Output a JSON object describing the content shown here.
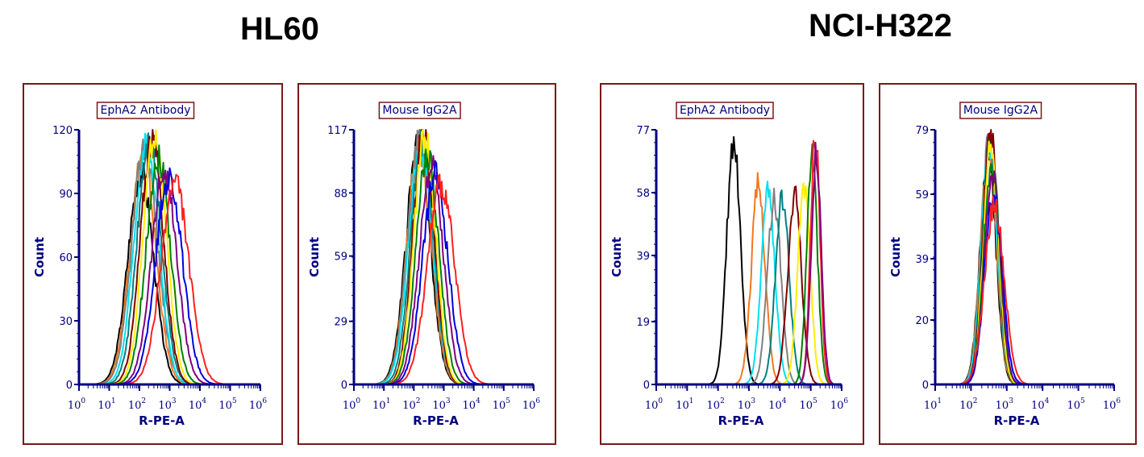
{
  "groups": [
    {
      "title": "HL60"
    },
    {
      "title": "NCI-H322"
    }
  ],
  "colors": {
    "frame": "#7a1717",
    "axis": "#000080",
    "text": "#000080"
  },
  "chart_data": [
    {
      "type": "line",
      "group": "HL60",
      "title": "EphA2 Antibody",
      "xlabel": "R-PE-A",
      "ylabel": "Count",
      "xscale": "log",
      "xlim": [
        1,
        1000000
      ],
      "ylim": [
        0,
        120
      ],
      "xticks": [
        {
          "exp": "0"
        },
        {
          "exp": "1"
        },
        {
          "exp": "2"
        },
        {
          "exp": "3"
        },
        {
          "exp": "4"
        },
        {
          "exp": "5"
        },
        {
          "exp": "6"
        }
      ],
      "yticks": [
        {
          "v": 0,
          "label": "0"
        },
        {
          "v": 30,
          "label": "30"
        },
        {
          "v": 60,
          "label": "60"
        },
        {
          "v": 90,
          "label": "90"
        },
        {
          "v": 120,
          "label": "120"
        }
      ],
      "series": [
        {
          "color": "#000000",
          "peak_x": 110,
          "peak_y": 100,
          "width": 0.42
        },
        {
          "color": "#f07820",
          "peak_x": 130,
          "peak_y": 108,
          "width": 0.42
        },
        {
          "color": "#808080",
          "peak_x": 150,
          "peak_y": 112,
          "width": 0.42
        },
        {
          "color": "#00e0f0",
          "peak_x": 170,
          "peak_y": 115,
          "width": 0.4
        },
        {
          "color": "#008080",
          "peak_x": 210,
          "peak_y": 113,
          "width": 0.4
        },
        {
          "color": "#800000",
          "peak_x": 260,
          "peak_y": 116,
          "width": 0.38
        },
        {
          "color": "#ffee00",
          "peak_x": 320,
          "peak_y": 118,
          "width": 0.38
        },
        {
          "color": "#008000",
          "peak_x": 420,
          "peak_y": 107,
          "width": 0.4
        },
        {
          "color": "#800080",
          "peak_x": 650,
          "peak_y": 100,
          "width": 0.42
        },
        {
          "color": "#0000e0",
          "peak_x": 950,
          "peak_y": 98,
          "width": 0.44
        },
        {
          "color": "#ff2020",
          "peak_x": 1500,
          "peak_y": 95,
          "width": 0.46
        }
      ]
    },
    {
      "type": "line",
      "group": "HL60",
      "title": "Mouse IgG2A",
      "xlabel": "R-PE-A",
      "ylabel": "Count",
      "xscale": "log",
      "xlim": [
        1,
        1000000
      ],
      "ylim": [
        0,
        117
      ],
      "xticks": [
        {
          "exp": "0"
        },
        {
          "exp": "1"
        },
        {
          "exp": "2"
        },
        {
          "exp": "3"
        },
        {
          "exp": "4"
        },
        {
          "exp": "5"
        },
        {
          "exp": "6"
        }
      ],
      "yticks": [
        {
          "v": 0,
          "label": "0"
        },
        {
          "v": 29,
          "label": "29"
        },
        {
          "v": 59,
          "label": "59"
        },
        {
          "v": 88,
          "label": "88"
        },
        {
          "v": 117,
          "label": "117"
        }
      ],
      "series": [
        {
          "color": "#000000",
          "peak_x": 140,
          "peak_y": 110,
          "width": 0.4
        },
        {
          "color": "#f07820",
          "peak_x": 150,
          "peak_y": 108,
          "width": 0.4
        },
        {
          "color": "#808080",
          "peak_x": 160,
          "peak_y": 112,
          "width": 0.4
        },
        {
          "color": "#00e0f0",
          "peak_x": 170,
          "peak_y": 110,
          "width": 0.4
        },
        {
          "color": "#008080",
          "peak_x": 190,
          "peak_y": 112,
          "width": 0.38
        },
        {
          "color": "#800000",
          "peak_x": 210,
          "peak_y": 116,
          "width": 0.36
        },
        {
          "color": "#ffee00",
          "peak_x": 230,
          "peak_y": 114,
          "width": 0.36
        },
        {
          "color": "#008000",
          "peak_x": 280,
          "peak_y": 105,
          "width": 0.38
        },
        {
          "color": "#800080",
          "peak_x": 380,
          "peak_y": 100,
          "width": 0.4
        },
        {
          "color": "#0000e0",
          "peak_x": 520,
          "peak_y": 96,
          "width": 0.42
        },
        {
          "color": "#ff2020",
          "peak_x": 800,
          "peak_y": 92,
          "width": 0.45
        }
      ]
    },
    {
      "type": "line",
      "group": "NCI-H322",
      "title": "EphA2 Antibody",
      "xlabel": "R-PE-A",
      "ylabel": "Count",
      "xscale": "log",
      "xlim": [
        1,
        1000000
      ],
      "ylim": [
        0,
        77
      ],
      "xticks": [
        {
          "exp": "0"
        },
        {
          "exp": "1"
        },
        {
          "exp": "2"
        },
        {
          "exp": "3"
        },
        {
          "exp": "4"
        },
        {
          "exp": "5"
        },
        {
          "exp": "6"
        }
      ],
      "yticks": [
        {
          "v": 0,
          "label": "0"
        },
        {
          "v": 19,
          "label": "19"
        },
        {
          "v": 39,
          "label": "39"
        },
        {
          "v": 58,
          "label": "58"
        },
        {
          "v": 77,
          "label": "77"
        }
      ],
      "series": [
        {
          "color": "#000000",
          "peak_x": 320,
          "peak_y": 74,
          "width": 0.22
        },
        {
          "color": "#f07820",
          "peak_x": 2000,
          "peak_y": 60,
          "width": 0.22
        },
        {
          "color": "#00e0f0",
          "peak_x": 4200,
          "peak_y": 58,
          "width": 0.22
        },
        {
          "color": "#808080",
          "peak_x": 6500,
          "peak_y": 56,
          "width": 0.22
        },
        {
          "color": "#008080",
          "peak_x": 12000,
          "peak_y": 56,
          "width": 0.22
        },
        {
          "color": "#800000",
          "peak_x": 30000,
          "peak_y": 57,
          "width": 0.22
        },
        {
          "color": "#ffee00",
          "peak_x": 60000,
          "peak_y": 60,
          "width": 0.2
        },
        {
          "color": "#008000",
          "peak_x": 110000,
          "peak_y": 70,
          "width": 0.17
        },
        {
          "color": "#ff2020",
          "peak_x": 140000,
          "peak_y": 76,
          "width": 0.15
        },
        {
          "color": "#800080",
          "peak_x": 150000,
          "peak_y": 70,
          "width": 0.16
        }
      ]
    },
    {
      "type": "line",
      "group": "NCI-H322",
      "title": "Mouse IgG2A",
      "xlabel": "R-PE-A",
      "ylabel": "Count",
      "xscale": "log",
      "xlim": [
        10,
        1000000
      ],
      "ylim": [
        0,
        79
      ],
      "xticks": [
        {
          "exp": "1"
        },
        {
          "exp": "2"
        },
        {
          "exp": "3"
        },
        {
          "exp": "4"
        },
        {
          "exp": "5"
        },
        {
          "exp": "6"
        }
      ],
      "yticks": [
        {
          "v": 0,
          "label": "0"
        },
        {
          "v": 20,
          "label": "20"
        },
        {
          "v": 39,
          "label": "39"
        },
        {
          "v": 59,
          "label": "59"
        },
        {
          "v": 79,
          "label": "79"
        }
      ],
      "series": [
        {
          "color": "#000000",
          "peak_x": 300,
          "peak_y": 72,
          "width": 0.22
        },
        {
          "color": "#f07820",
          "peak_x": 310,
          "peak_y": 74,
          "width": 0.22
        },
        {
          "color": "#808080",
          "peak_x": 320,
          "peak_y": 76,
          "width": 0.22
        },
        {
          "color": "#00e0f0",
          "peak_x": 330,
          "peak_y": 73,
          "width": 0.22
        },
        {
          "color": "#008080",
          "peak_x": 340,
          "peak_y": 77,
          "width": 0.21
        },
        {
          "color": "#800000",
          "peak_x": 350,
          "peak_y": 79,
          "width": 0.21
        },
        {
          "color": "#ffee00",
          "peak_x": 360,
          "peak_y": 75,
          "width": 0.21
        },
        {
          "color": "#008000",
          "peak_x": 380,
          "peak_y": 70,
          "width": 0.22
        },
        {
          "color": "#800080",
          "peak_x": 400,
          "peak_y": 66,
          "width": 0.22
        },
        {
          "color": "#0000e0",
          "peak_x": 420,
          "peak_y": 60,
          "width": 0.24
        },
        {
          "color": "#ff2020",
          "peak_x": 450,
          "peak_y": 56,
          "width": 0.27
        }
      ]
    }
  ]
}
